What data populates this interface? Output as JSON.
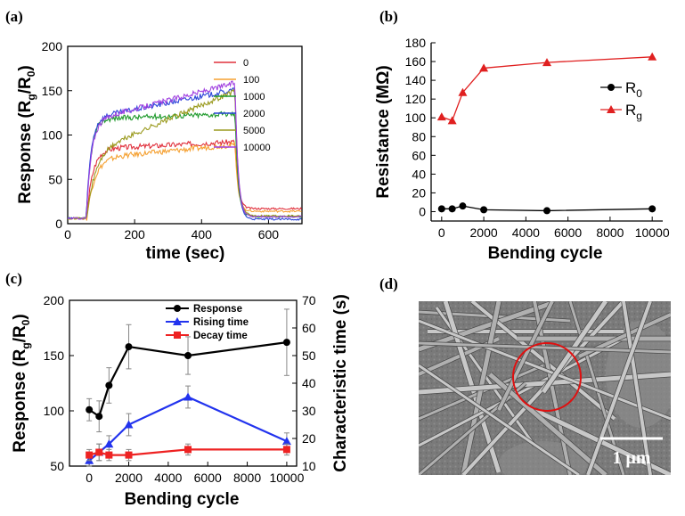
{
  "panels": {
    "a": "(a)",
    "b": "(b)",
    "c": "(c)",
    "d": "(d)"
  },
  "chart_data": [
    {
      "id": "a",
      "type": "line",
      "xlabel": "time (sec)",
      "ylabel": "Response (R_g/R_0)",
      "xlim": [
        0,
        700
      ],
      "ylim": [
        0,
        200
      ],
      "xticks": [
        0,
        200,
        400,
        600
      ],
      "yticks": [
        0,
        50,
        100,
        150,
        200
      ],
      "legend": "top-right",
      "series": [
        {
          "name": "0",
          "color": "#e0303c",
          "plateau": 84,
          "rise": 52,
          "amp": 0.1,
          "tail": 17
        },
        {
          "name": "100",
          "color": "#f5a030",
          "plateau": 73,
          "rise": 65,
          "amp": 0.22,
          "tail": 14
        },
        {
          "name": "1000",
          "color": "#1f9a2c",
          "plateau": 118,
          "rise": 40,
          "amp": 0.05,
          "tail": 8
        },
        {
          "name": "2000",
          "color": "#2a44d8",
          "plateau": 118,
          "rise": 38,
          "amp": 0.28,
          "tail": 5
        },
        {
          "name": "5000",
          "color": "#9a9a1e",
          "plateau": 78,
          "rise": 70,
          "amp": 0.92,
          "tail": 9
        },
        {
          "name": "10000",
          "color": "#a040e0",
          "plateau": 115,
          "rise": 42,
          "amp": 0.38,
          "tail": 8
        }
      ]
    },
    {
      "id": "b",
      "type": "line",
      "xlabel": "Bending cycle",
      "ylabel": "Resistance (MΩ)",
      "xlim": [
        -500,
        10500
      ],
      "ylim": [
        -10,
        180
      ],
      "xticks": [
        0,
        2000,
        4000,
        6000,
        8000,
        10000
      ],
      "yticks": [
        0,
        20,
        40,
        60,
        80,
        100,
        120,
        140,
        160,
        180
      ],
      "legend": "right",
      "series": [
        {
          "name": "R0",
          "label_main": "R",
          "label_sub": "0",
          "color": "#000000",
          "marker": "circle",
          "x": [
            0,
            500,
            1000,
            2000,
            5000,
            10000
          ],
          "y": [
            3,
            3,
            6,
            2,
            1,
            3
          ]
        },
        {
          "name": "Rg",
          "label_main": "R",
          "label_sub": "g",
          "color": "#e02020",
          "marker": "triangle",
          "x": [
            0,
            500,
            1000,
            2000,
            5000,
            10000
          ],
          "y": [
            101,
            97,
            127,
            153,
            159,
            165
          ]
        }
      ]
    },
    {
      "id": "c",
      "type": "line",
      "xlabel": "Bending cycle",
      "ylabel": "Response (R_g/R_0)",
      "ylabel2": "Characteristic time (s)",
      "xlim": [
        -1000,
        10500
      ],
      "ylim": [
        50,
        200
      ],
      "ylim2": [
        10,
        70
      ],
      "xticks": [
        0,
        2000,
        4000,
        6000,
        8000,
        10000
      ],
      "yticks": [
        50,
        100,
        150,
        200
      ],
      "yticks2": [
        10,
        20,
        30,
        40,
        50,
        60,
        70
      ],
      "legend": "top-right",
      "series": [
        {
          "name": "Response",
          "color": "#000000",
          "marker": "circle",
          "axis": "left",
          "x": [
            0,
            500,
            1000,
            2000,
            5000,
            10000
          ],
          "y": [
            101,
            95,
            123,
            158,
            150,
            162
          ],
          "err": [
            10,
            14,
            16,
            20,
            17,
            30
          ]
        },
        {
          "name": "Rising time",
          "color": "#2233ee",
          "marker": "triangle",
          "axis": "right",
          "x": [
            0,
            500,
            1000,
            2000,
            5000,
            10000
          ],
          "y": [
            12,
            15,
            18,
            25,
            35,
            19
          ],
          "err": [
            2,
            3,
            3,
            4,
            4,
            3
          ]
        },
        {
          "name": "Decay time",
          "color": "#ee2222",
          "marker": "square",
          "axis": "right",
          "x": [
            0,
            500,
            1000,
            2000,
            5000,
            10000
          ],
          "y": [
            14,
            15,
            14,
            14,
            16,
            16
          ],
          "err": [
            2,
            3,
            2,
            2,
            2,
            2
          ]
        }
      ]
    }
  ],
  "image_d": {
    "scale_bar": "1 μm"
  }
}
